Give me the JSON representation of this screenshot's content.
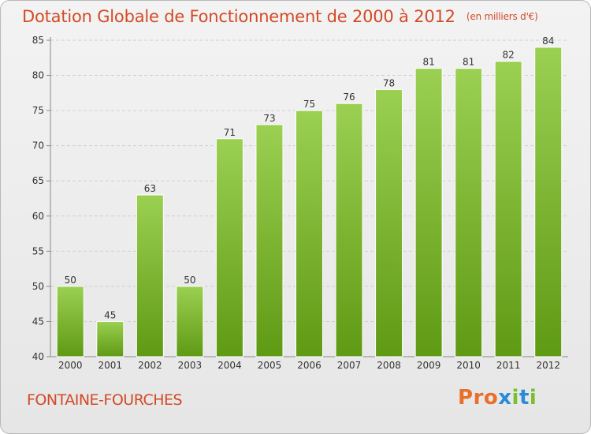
{
  "header": {
    "title": "Dotation Globale de Fonctionnement de 2000 à 2012",
    "unit": "(en milliers d'€)"
  },
  "footer": {
    "city": "FONTAINE-FOURCHES",
    "logo_text": "Proxiti"
  },
  "colors": {
    "title": "#d24a25",
    "bar_light": "#9bd052",
    "bar_dark": "#5f9a14",
    "grid": "#cfcfcf",
    "logo_letters": [
      "#e8702a",
      "#e8702a",
      "#e8702a",
      "#2a8bd6",
      "#7bbf2e",
      "#2a8bd6",
      "#7bbf2e"
    ]
  },
  "chart_data": {
    "type": "bar",
    "title": "Dotation Globale de Fonctionnement de 2000 à 2012",
    "subtitle": "(en milliers d'€)",
    "xlabel": "",
    "ylabel": "",
    "categories": [
      "2000",
      "2001",
      "2002",
      "2003",
      "2004",
      "2005",
      "2006",
      "2007",
      "2008",
      "2009",
      "2010",
      "2011",
      "2012"
    ],
    "values": [
      50,
      45,
      63,
      50,
      71,
      73,
      75,
      76,
      78,
      81,
      81,
      82,
      84
    ],
    "ylim": [
      40,
      85
    ],
    "yticks": [
      40,
      45,
      50,
      55,
      60,
      65,
      70,
      75,
      80,
      85
    ],
    "grid": true,
    "data_labels": true
  }
}
